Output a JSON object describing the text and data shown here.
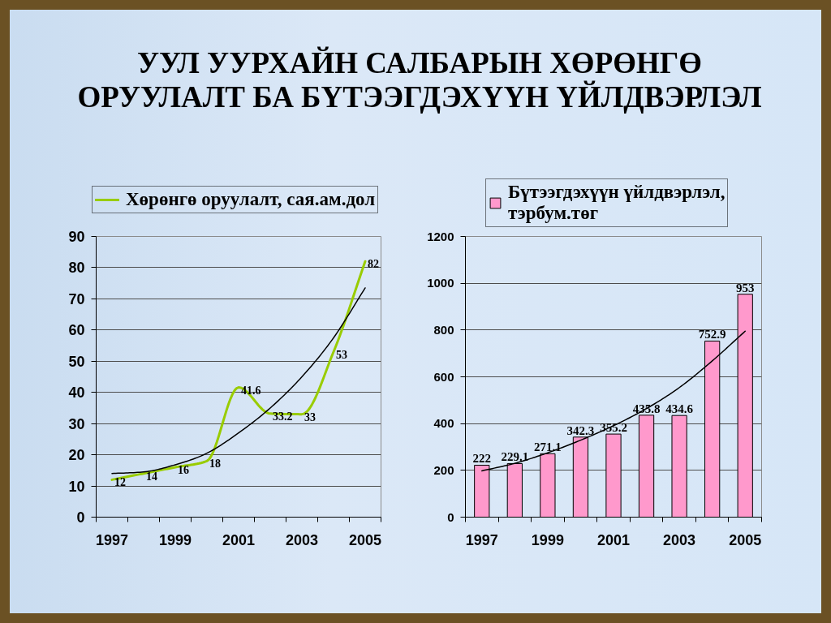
{
  "chart_data": [
    {
      "type": "line",
      "title": "УУЛ УУРХАЙН САЛБАРЫН ХӨРӨНГӨ ОРУУЛАЛТ БА БҮТЭЭГДЭХҮҮН ҮЙЛДВЭРЛЭЛ",
      "x": [
        1997,
        1998,
        1999,
        2000,
        2001,
        2002,
        2003,
        2004,
        2005
      ],
      "xlim": [
        1996.5,
        2005.5
      ],
      "xticks": [
        1997,
        1999,
        2001,
        2003,
        2005
      ],
      "ylim": [
        0,
        90
      ],
      "yticks": [
        0,
        10,
        20,
        30,
        40,
        50,
        60,
        70,
        80,
        90
      ],
      "grid": "y",
      "legend": "top",
      "series": [
        {
          "name": "Хөрөнгө оруулалт, сая.ам.дол",
          "color": "#99cc00",
          "values": [
            12,
            14,
            16,
            18,
            41.6,
            33.2,
            33,
            53,
            82
          ],
          "value_labels": [
            "12",
            "14",
            "16",
            "18",
            "41.6",
            "33.2",
            "33",
            "53",
            "82"
          ]
        },
        {
          "type": "line",
          "color": "#000000",
          "x": [
            1997,
            1998,
            1999,
            2000,
            2001,
            2002,
            2003,
            2004,
            2005
          ],
          "values": [
            14,
            14.5,
            16.8,
            20.5,
            27,
            35,
            45,
            57.5,
            73.5
          ]
        }
      ]
    },
    {
      "type": "bar",
      "x": [
        1997,
        1998,
        1999,
        2000,
        2001,
        2002,
        2003,
        2004,
        2005
      ],
      "xlim": [
        1996.5,
        2005.5
      ],
      "xticks": [
        1997,
        1999,
        2001,
        2003,
        2005
      ],
      "ylim": [
        0,
        1200
      ],
      "yticks": [
        0,
        200,
        400,
        600,
        800,
        1000,
        1200
      ],
      "grid": "y",
      "legend": "top",
      "series": [
        {
          "name": "Бүтээгдэхүүн үйлдвэрлэл, тэрбум.төг",
          "color": "#ff99cc",
          "values": [
            222,
            229.1,
            271.1,
            342.3,
            355.2,
            435.8,
            434.6,
            752.9,
            953
          ],
          "value_labels": [
            "222",
            "229.1",
            "271.1",
            "342.3",
            "355.2",
            "435.8",
            "434.6",
            "752.9",
            "953"
          ]
        },
        {
          "type": "line",
          "color": "#000000",
          "x": [
            1997,
            1998,
            1999,
            2000,
            2001,
            2002,
            2003,
            2004,
            2005
          ],
          "values": [
            198,
            230,
            275,
            329,
            391,
            464,
            554,
            668,
            795
          ]
        }
      ]
    }
  ]
}
